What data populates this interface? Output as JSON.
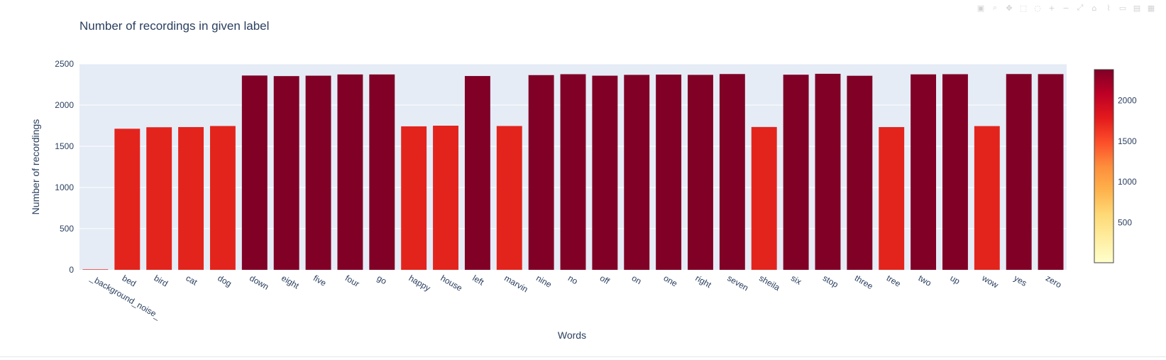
{
  "chart_data": {
    "type": "bar",
    "title": "Number of recordings in given label",
    "xlabel": "Words",
    "ylabel": "Number of recordings",
    "ylim": [
      0,
      2500
    ],
    "yticks": [
      0,
      500,
      1000,
      1500,
      2000,
      2500
    ],
    "grid": true,
    "categories": [
      "_background_noise_",
      "bed",
      "bird",
      "cat",
      "dog",
      "down",
      "eight",
      "five",
      "four",
      "go",
      "happy",
      "house",
      "left",
      "marvin",
      "nine",
      "no",
      "off",
      "on",
      "one",
      "right",
      "seven",
      "sheila",
      "six",
      "stop",
      "three",
      "tree",
      "two",
      "up",
      "wow",
      "yes",
      "zero"
    ],
    "values": [
      6,
      1713,
      1731,
      1733,
      1746,
      2359,
      2352,
      2357,
      2372,
      2372,
      1742,
      1750,
      2353,
      1746,
      2364,
      2375,
      2357,
      2367,
      2370,
      2367,
      2377,
      1734,
      2369,
      2380,
      2356,
      1733,
      2373,
      2375,
      1745,
      2377,
      2376
    ],
    "colorscale": {
      "name": "YlOrRd",
      "stops": [
        "#ffffcc",
        "#ffeda0",
        "#fed976",
        "#feb24c",
        "#fd8d3c",
        "#fc4e2a",
        "#e31a1c",
        "#bd0026",
        "#800026"
      ],
      "cmin": 6,
      "cmax": 2380,
      "ticks": [
        500,
        1000,
        1500,
        2000
      ]
    },
    "bar_colors": {
      "high": "#800026",
      "mid": "#e3241d"
    }
  },
  "modebar": {
    "icons": [
      "camera-icon",
      "zoom-icon",
      "pan-icon",
      "box-select-icon",
      "lasso-icon",
      "zoom-in-icon",
      "zoom-out-icon",
      "autoscale-icon",
      "reset-icon",
      "spike-icon",
      "hover-closest-icon",
      "hover-compare-icon",
      "plotly-logo-icon"
    ]
  }
}
